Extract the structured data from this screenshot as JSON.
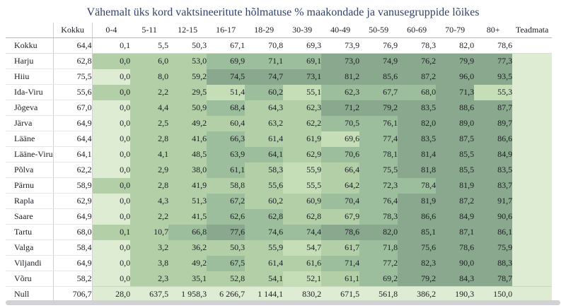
{
  "title": "Vähemalt üks kord vaktsineeritute hõlmatuse % maakondade ja vanusegruppide lõikes",
  "colors": {
    "title_text": "#2f4269",
    "cell_text": "#1c1c24",
    "grid_line": "#cfcfcf",
    "scrollbar": "#d2d1d5"
  },
  "chart_data": {
    "type": "heatmap",
    "title": "Vähemalt üks kord vaktsineeritute hõlmatuse % maakondade ja vanusegruppide lõikes",
    "corner_label": "",
    "columns": [
      "Kokku",
      "0-4",
      "5-11",
      "12-15",
      "16-17",
      "18-29",
      "30-39",
      "40-49",
      "50-59",
      "60-69",
      "70-79",
      "80+",
      "Teadmata"
    ],
    "rows": [
      "Kokku",
      "Harju",
      "Hiiu",
      "Ida-Viru",
      "Jõgeva",
      "Järva",
      "Lääne",
      "Lääne-Viru",
      "Põlva",
      "Pärnu",
      "Rapla",
      "Saare",
      "Tartu",
      "Valga",
      "Viljandi",
      "Võru",
      "Null"
    ],
    "values": [
      [
        64.4,
        0.1,
        5.5,
        50.3,
        67.1,
        70.8,
        69.3,
        73.9,
        76.9,
        78.3,
        82.0,
        78.6,
        null
      ],
      [
        62.8,
        0.0,
        6.0,
        53.0,
        69.9,
        71.1,
        69.1,
        73.0,
        74.9,
        76.2,
        79.9,
        77.3,
        null
      ],
      [
        75.5,
        0.0,
        8.0,
        59.2,
        74.5,
        74.7,
        73.1,
        81.2,
        85.6,
        87.2,
        96.0,
        93.5,
        null
      ],
      [
        55.6,
        0.0,
        2.2,
        29.5,
        51.4,
        60.2,
        55.1,
        62.3,
        67.7,
        68.0,
        71.3,
        55.3,
        null
      ],
      [
        67.0,
        0.0,
        4.4,
        50.9,
        68.4,
        64.3,
        62.3,
        71.2,
        79.2,
        83.5,
        88.6,
        87.7,
        null
      ],
      [
        64.9,
        0.0,
        2.5,
        49.2,
        60.4,
        63.2,
        62.2,
        70.5,
        76.1,
        82.0,
        89.0,
        89.7,
        null
      ],
      [
        64.4,
        0.0,
        2.8,
        41.6,
        66.3,
        61.4,
        61.9,
        69.6,
        77.4,
        83.5,
        87.5,
        86.6,
        null
      ],
      [
        64.1,
        0.0,
        4.1,
        48.5,
        63.9,
        64.1,
        62.9,
        70.6,
        78.1,
        81.4,
        85.5,
        84.9,
        null
      ],
      [
        62.2,
        0.0,
        2.9,
        38.0,
        61.1,
        58.3,
        55.9,
        66.4,
        75.5,
        81.8,
        85.5,
        83.5,
        null
      ],
      [
        58.9,
        0.0,
        2.8,
        41.9,
        58.8,
        55.6,
        55.5,
        64.2,
        72.3,
        78.4,
        81.9,
        83.7,
        null
      ],
      [
        62.9,
        0.0,
        4.3,
        51.3,
        67.2,
        60.2,
        60.9,
        70.4,
        76.4,
        81.9,
        87.2,
        91.7,
        null
      ],
      [
        64.9,
        0.0,
        2.2,
        41.5,
        62.6,
        62.8,
        62.8,
        67.9,
        78.3,
        86.6,
        84.9,
        90.6,
        null
      ],
      [
        68.0,
        0.1,
        10.7,
        66.8,
        77.6,
        74.6,
        74.4,
        78.6,
        82.0,
        85.1,
        87.1,
        86.1,
        null
      ],
      [
        58.4,
        0.0,
        3.2,
        36.2,
        50.3,
        55.9,
        54.7,
        61.7,
        71.8,
        75.6,
        78.6,
        75.9,
        null
      ],
      [
        64.9,
        0.0,
        3.8,
        49.2,
        67.5,
        61.4,
        61.6,
        71.4,
        77.2,
        82.3,
        90.0,
        88.3,
        null
      ],
      [
        58.2,
        0.0,
        2.3,
        35.1,
        52.8,
        54.1,
        52.1,
        61.1,
        69.2,
        79.2,
        84.3,
        78.7,
        null
      ],
      [
        706.7,
        28.0,
        637.5,
        1958.3,
        6266.7,
        1144.1,
        830.2,
        671.5,
        561.8,
        386.2,
        190.3,
        150.0,
        null
      ]
    ],
    "cell_shade_levels": [
      [
        0,
        0,
        0,
        0,
        0,
        0,
        0,
        0,
        0,
        0,
        0,
        0,
        0
      ],
      [
        0,
        3,
        3,
        3,
        4,
        4,
        4,
        5,
        5,
        5,
        5,
        5,
        1
      ],
      [
        0,
        1,
        3,
        3,
        5,
        5,
        5,
        5,
        5,
        5,
        5,
        5,
        1
      ],
      [
        0,
        3,
        3,
        3,
        2,
        4,
        2,
        4,
        4,
        4,
        5,
        2,
        1
      ],
      [
        0,
        1,
        3,
        3,
        4,
        3,
        3,
        5,
        5,
        5,
        5,
        5,
        1
      ],
      [
        0,
        1,
        3,
        3,
        3,
        3,
        3,
        4,
        4,
        5,
        5,
        5,
        1
      ],
      [
        0,
        1,
        3,
        3,
        4,
        3,
        3,
        2,
        4,
        5,
        5,
        5,
        1
      ],
      [
        0,
        1,
        3,
        3,
        4,
        4,
        3,
        4,
        4,
        5,
        5,
        5,
        1
      ],
      [
        0,
        1,
        3,
        3,
        4,
        3,
        2,
        3,
        4,
        5,
        5,
        5,
        1
      ],
      [
        0,
        3,
        3,
        3,
        3,
        3,
        2,
        3,
        4,
        4,
        5,
        5,
        1
      ],
      [
        0,
        1,
        3,
        3,
        4,
        3,
        3,
        4,
        4,
        5,
        5,
        5,
        1
      ],
      [
        0,
        1,
        3,
        3,
        4,
        4,
        3,
        3,
        4,
        5,
        5,
        5,
        1
      ],
      [
        0,
        3,
        3,
        4,
        5,
        4,
        4,
        5,
        5,
        5,
        5,
        5,
        1
      ],
      [
        0,
        1,
        3,
        3,
        3,
        3,
        2,
        3,
        4,
        5,
        5,
        5,
        1
      ],
      [
        0,
        1,
        3,
        3,
        4,
        3,
        3,
        4,
        4,
        5,
        5,
        5,
        1
      ],
      [
        0,
        1,
        3,
        3,
        3,
        3,
        2,
        3,
        4,
        5,
        5,
        5,
        1
      ],
      [
        0,
        1,
        1,
        1,
        1,
        1,
        1,
        1,
        1,
        1,
        1,
        1,
        1
      ]
    ],
    "level_colors": [
      "#ffffff",
      "#deecd3",
      "#c5deb8",
      "#b2cfa8",
      "#9cbe9c",
      "#8aa88e"
    ],
    "value_format": "one decimal, comma as decimal separator, space as thousands separator, empty cell when no value",
    "legend_position": "none",
    "grid": false
  }
}
